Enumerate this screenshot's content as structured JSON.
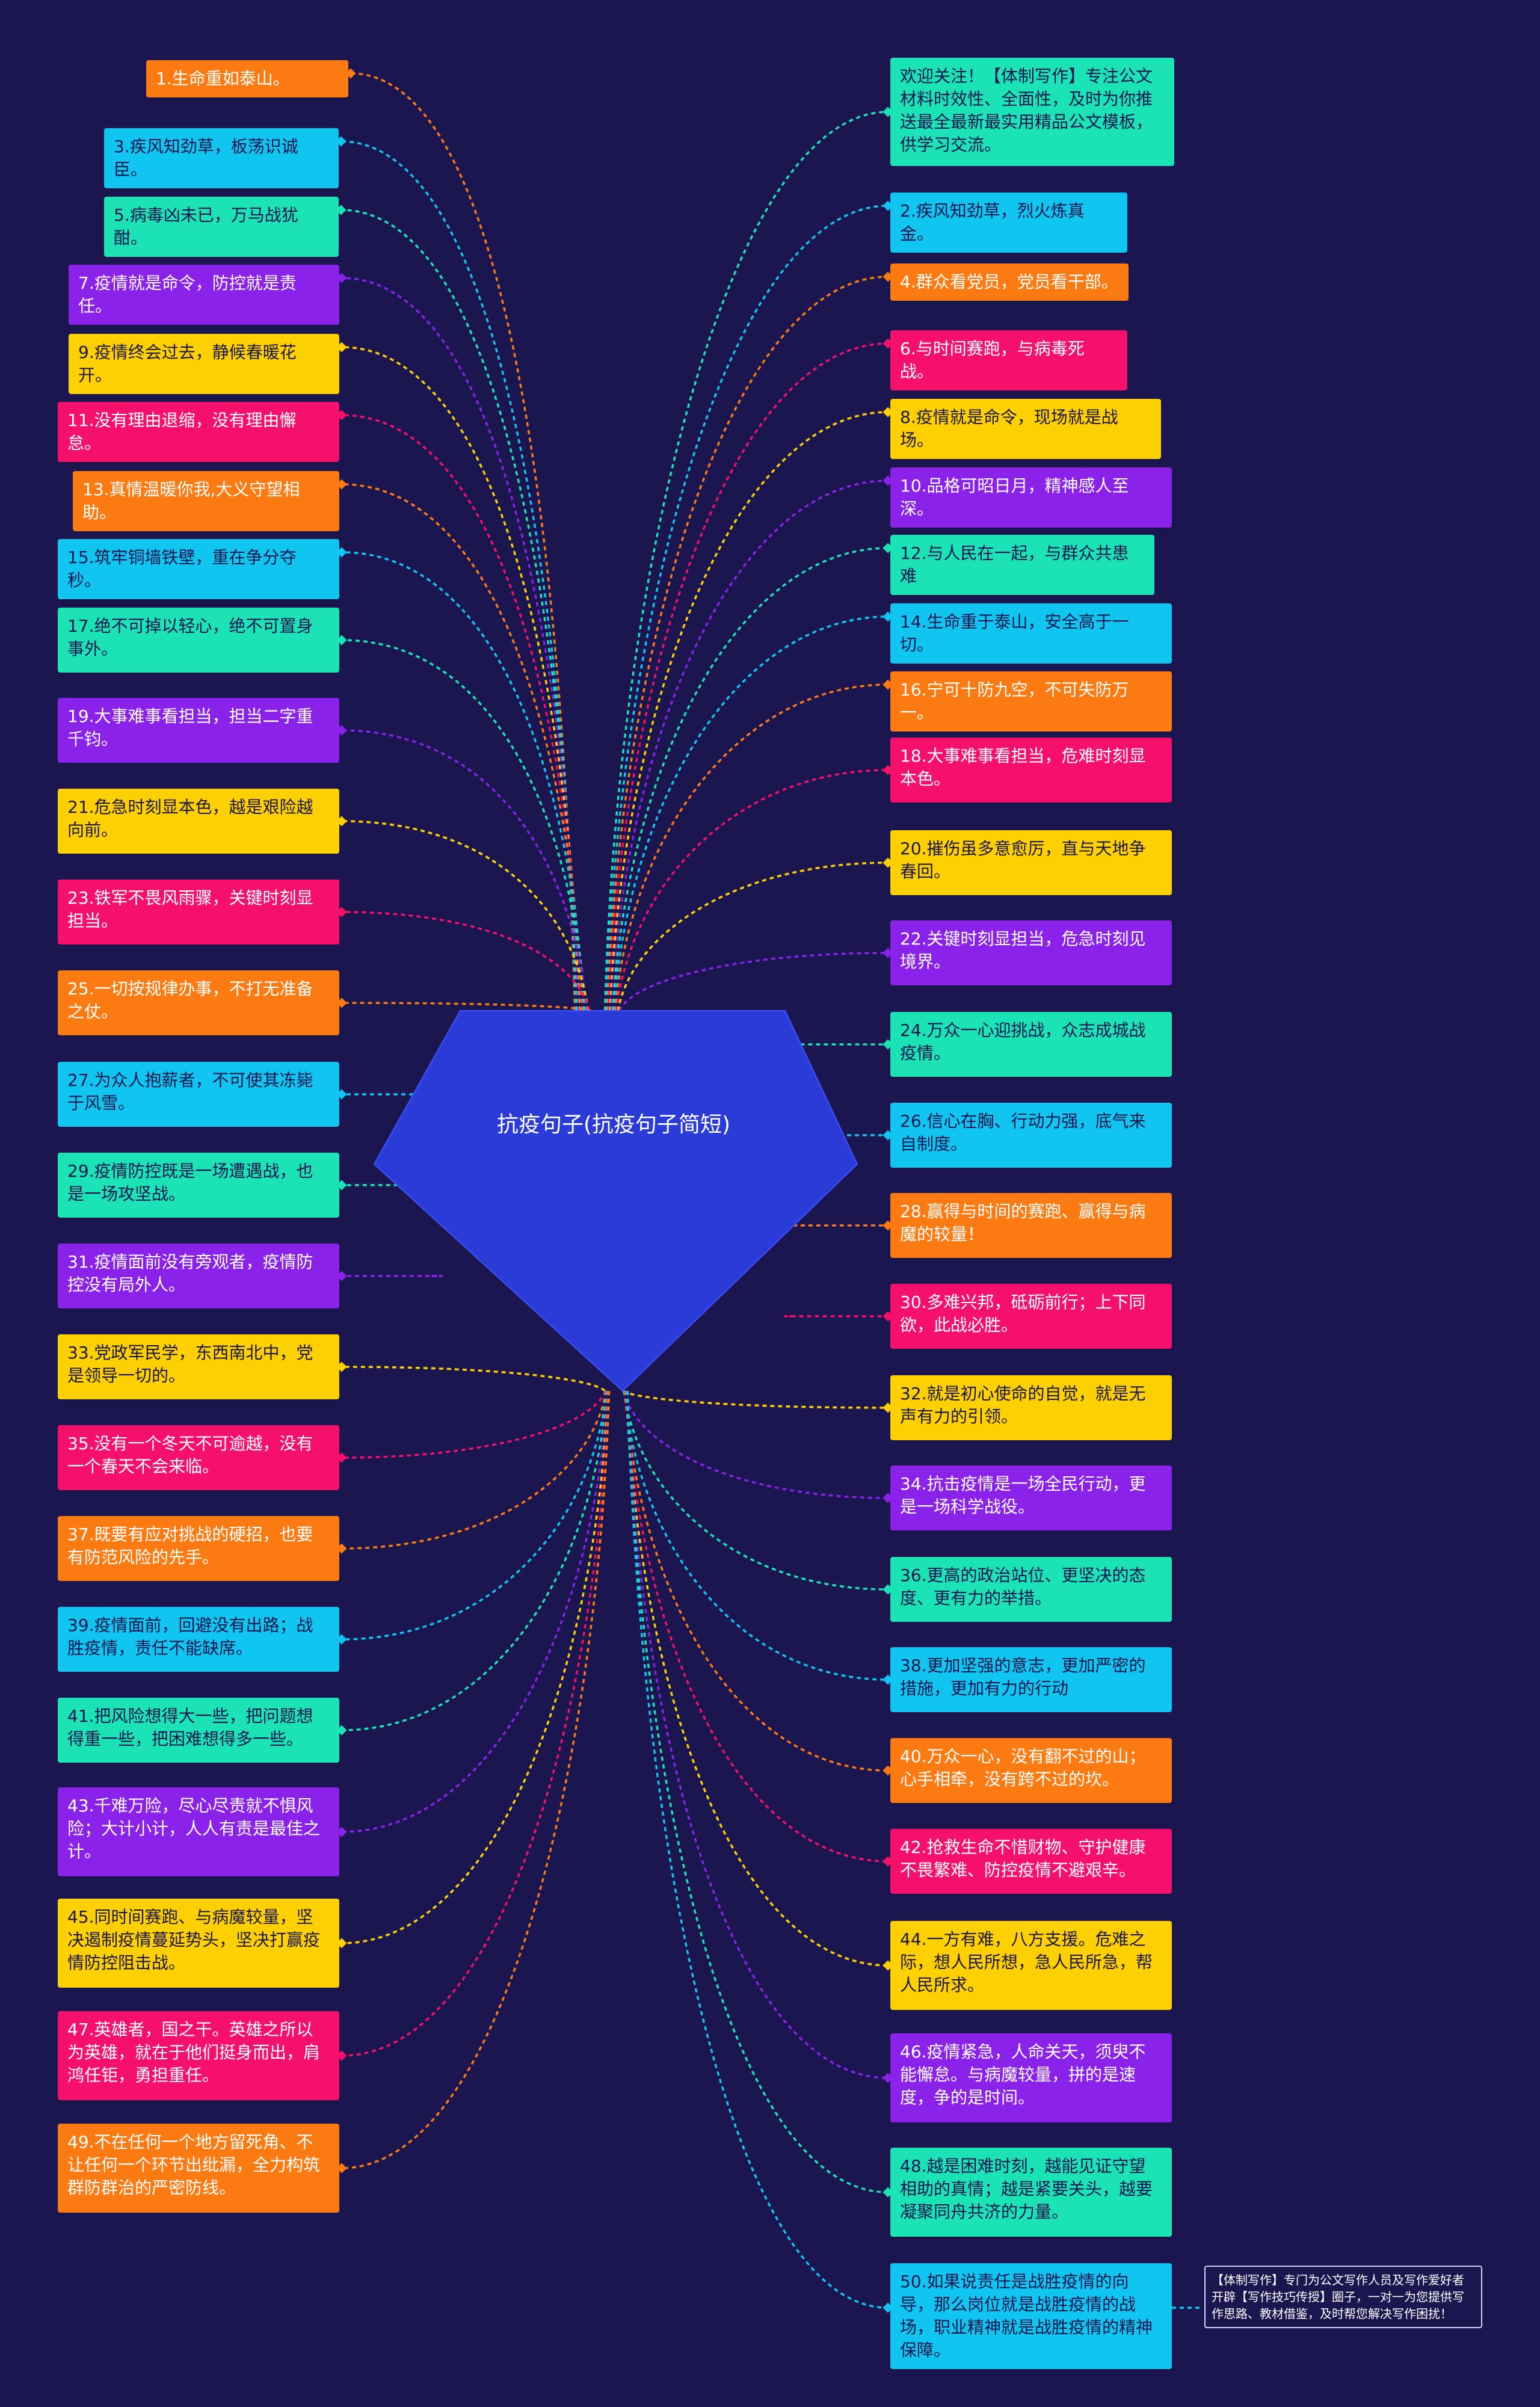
{
  "center": {
    "title": "抗疫句子(抗疫句子简短)",
    "color": "#2a3bd8"
  },
  "left_nodes": [
    {
      "text": "1.生命重如泰山。",
      "color": "#fb7a12"
    },
    {
      "text": "3.疾风知劲草，板荡识诚臣。",
      "color": "#10c6f0"
    },
    {
      "text": "5.病毒凶未已，万马战犹酣。",
      "color": "#1be3b5"
    },
    {
      "text": "7.疫情就是命令，防控就是责任。",
      "color": "#8a22ea"
    },
    {
      "text": "9.疫情终会过去，静候春暖花开。",
      "color": "#fdd003"
    },
    {
      "text": "11.没有理由退缩，没有理由懈怠。",
      "color": "#f5106c"
    },
    {
      "text": "13.真情温暖你我,大义守望相助。",
      "color": "#fb7a12"
    },
    {
      "text": "15.筑牢铜墙铁壁，重在争分夺秒。",
      "color": "#10c6f0"
    },
    {
      "text": "17.绝不可掉以轻心，绝不可置身事外。",
      "color": "#1be3b5"
    },
    {
      "text": "19.大事难事看担当，担当二字重千钧。",
      "color": "#8a22ea"
    },
    {
      "text": "21.危急时刻显本色，越是艰险越向前。",
      "color": "#fdd003"
    },
    {
      "text": "23.铁军不畏风雨骤，关键时刻显担当。",
      "color": "#f5106c"
    },
    {
      "text": "25.一切按规律办事，不打无准备之仗。",
      "color": "#fb7a12"
    },
    {
      "text": "27.为众人抱薪者，不可使其冻毙于风雪。",
      "color": "#10c6f0"
    },
    {
      "text": "29.疫情防控既是一场遭遇战，也是一场攻坚战。",
      "color": "#1be3b5"
    },
    {
      "text": "31.疫情面前没有旁观者，疫情防控没有局外人。",
      "color": "#8a22ea"
    },
    {
      "text": "33.党政军民学，东西南北中，党是领导一切的。",
      "color": "#fdd003"
    },
    {
      "text": "35.没有一个冬天不可逾越，没有一个春天不会来临。",
      "color": "#f5106c"
    },
    {
      "text": "37.既要有应对挑战的硬招，也要有防范风险的先手。",
      "color": "#fb7a12"
    },
    {
      "text": "39.疫情面前，回避没有出路；战胜疫情，责任不能缺席。",
      "color": "#10c6f0"
    },
    {
      "text": "41.把风险想得大一些，把问题想得重一些，把困难想得多一些。",
      "color": "#1be3b5"
    },
    {
      "text": "43.千难万险，尽心尽责就不惧风险；大计小计，人人有责是最佳之计。",
      "color": "#8a22ea"
    },
    {
      "text": "45.同时间赛跑、与病魔较量，坚决遏制疫情蔓延势头，坚决打赢疫情防控阻击战。",
      "color": "#fdd003"
    },
    {
      "text": "47.英雄者，国之干。英雄之所以为英雄，就在于他们挺身而出，肩鸿任钜，勇担重任。",
      "color": "#f5106c"
    },
    {
      "text": "49.不在任何一个地方留死角、不让任何一个环节出纰漏，全力构筑群防群治的严密防线。",
      "color": "#fb7a12"
    }
  ],
  "right_nodes": [
    {
      "text": "欢迎关注！【体制写作】专注公文材料时效性、全面性，及时为你推送最全最新最实用精品公文模板，供学习交流。",
      "color": "#1be3b5"
    },
    {
      "text": "2.疾风知劲草，烈火炼真金。",
      "color": "#10c6f0"
    },
    {
      "text": "4.群众看党员，党员看干部。",
      "color": "#fb7a12"
    },
    {
      "text": "6.与时间赛跑，与病毒死战。",
      "color": "#f5106c"
    },
    {
      "text": "8.疫情就是命令，现场就是战场。",
      "color": "#fdd003"
    },
    {
      "text": "10.品格可昭日月，精神感人至深。",
      "color": "#8a22ea"
    },
    {
      "text": "12.与人民在一起，与群众共患难",
      "color": "#1be3b5"
    },
    {
      "text": "14.生命重于泰山，安全高于一切。",
      "color": "#10c6f0"
    },
    {
      "text": "16.宁可十防九空，不可失防万一。",
      "color": "#fb7a12"
    },
    {
      "text": "18.大事难事看担当，危难时刻显本色。",
      "color": "#f5106c"
    },
    {
      "text": "20.摧伤虽多意愈厉，直与天地争春回。",
      "color": "#fdd003"
    },
    {
      "text": "22.关键时刻显担当，危急时刻见境界。",
      "color": "#8a22ea"
    },
    {
      "text": "24.万众一心迎挑战，众志成城战疫情。",
      "color": "#1be3b5"
    },
    {
      "text": "26.信心在胸、行动力强，底气来自制度。",
      "color": "#10c6f0"
    },
    {
      "text": "28.赢得与时间的赛跑、赢得与病魔的较量！",
      "color": "#fb7a12"
    },
    {
      "text": "30.多难兴邦，砥砺前行；上下同欲，此战必胜。",
      "color": "#f5106c"
    },
    {
      "text": "32.就是初心使命的自觉，就是无声有力的引领。",
      "color": "#fdd003"
    },
    {
      "text": "34.抗击疫情是一场全民行动，更是一场科学战役。",
      "color": "#8a22ea"
    },
    {
      "text": "36.更高的政治站位、更坚决的态度、更有力的举措。",
      "color": "#1be3b5"
    },
    {
      "text": "38.更加坚强的意志，更加严密的措施，更加有力的行动",
      "color": "#10c6f0"
    },
    {
      "text": "40.万众一心，没有翻不过的山；心手相牵，没有跨不过的坎。",
      "color": "#fb7a12"
    },
    {
      "text": "42.抢救生命不惜财物、守护健康不畏繁难、防控疫情不避艰辛。",
      "color": "#f5106c"
    },
    {
      "text": "44.一方有难，八方支援。危难之际，想人民所想，急人民所急，帮人民所求。",
      "color": "#fdd003"
    },
    {
      "text": "46.疫情紧急，人命关天，须臾不能懈怠。与病魔较量，拼的是速度，争的是时间。",
      "color": "#8a22ea"
    },
    {
      "text": "48.越是困难时刻，越能见证守望相助的真情；越是紧要关头，越要凝聚同舟共济的力量。",
      "color": "#1be3b5"
    },
    {
      "text": "50.如果说责任是战胜疫情的向导，那么岗位就是战胜疫情的战场，职业精神就是战胜疫情的精神保障。",
      "color": "#10c6f0"
    }
  ],
  "note": {
    "text": "【体制写作】专门为公文写作人员及写作爱好者开辟【写作技巧传授】圈子，一对一为您提供写作思路、教材借鉴，及时帮您解决写作困扰！"
  }
}
